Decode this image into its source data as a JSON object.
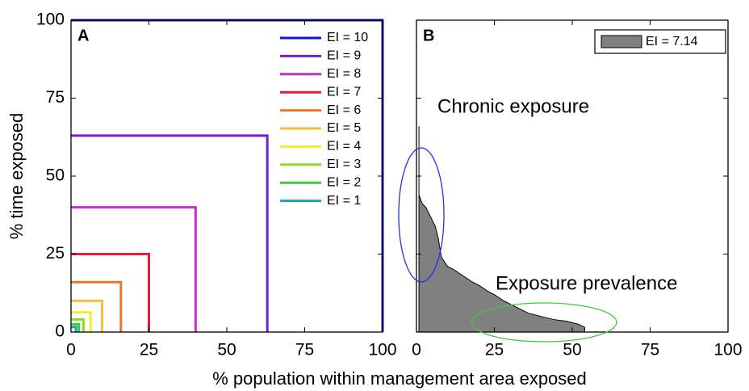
{
  "chart_data": [
    {
      "type": "line",
      "panel_label": "A",
      "ylabel": "% time exposed",
      "xlabel": "% population within management area exposed",
      "xlim": [
        0,
        100
      ],
      "ylim": [
        0,
        100
      ],
      "xticks": [
        0,
        25,
        50,
        75,
        100
      ],
      "yticks": [
        0,
        25,
        50,
        75,
        100
      ],
      "series": [
        {
          "name": "EI = 10",
          "color": "#0a14e6",
          "value": 100
        },
        {
          "name": "EI = 9",
          "color": "#7321c4",
          "value": 63
        },
        {
          "name": "EI = 8",
          "color": "#cc2ccc",
          "value": 40
        },
        {
          "name": "EI = 7",
          "color": "#ea1a3c",
          "value": 25
        },
        {
          "name": "EI = 6",
          "color": "#f07428",
          "value": 16
        },
        {
          "name": "EI = 5",
          "color": "#fbbb3c",
          "value": 10
        },
        {
          "name": "EI = 4",
          "color": "#f0f02a",
          "value": 6.3
        },
        {
          "name": "EI = 3",
          "color": "#8edc2a",
          "value": 4
        },
        {
          "name": "EI = 2",
          "color": "#3ccc3c",
          "value": 2.5
        },
        {
          "name": "EI = 1",
          "color": "#14a8b4",
          "value": 1.6
        }
      ]
    },
    {
      "type": "area",
      "panel_label": "B",
      "xlim": [
        0,
        100
      ],
      "ylim": [
        0,
        100
      ],
      "xticks": [
        0,
        25,
        50,
        75,
        100
      ],
      "yticks": [
        0,
        25,
        50,
        75,
        100
      ],
      "show_ytick_labels": false,
      "series": [
        {
          "name": "EI = 7.14",
          "color": "#808080",
          "x": [
            0.8,
            0.8,
            1.2,
            1.5,
            2,
            3,
            4,
            5,
            6,
            7,
            7.5,
            8,
            10,
            12,
            15,
            18,
            20,
            23,
            25,
            28,
            30,
            33,
            36,
            40,
            44,
            48,
            52,
            54
          ],
          "values": [
            66,
            44,
            43,
            42,
            41,
            40,
            38,
            36,
            34,
            30,
            27,
            24,
            21,
            20,
            18,
            16,
            15,
            13,
            12,
            10,
            9,
            7.5,
            6,
            5,
            4,
            3.5,
            2.5,
            1.5
          ]
        }
      ],
      "annotations": [
        {
          "text": "Chronic exposure",
          "color": "#2a2ee6"
        },
        {
          "text": "Exposure prevalence",
          "color": "#3ccc3c"
        }
      ]
    }
  ]
}
